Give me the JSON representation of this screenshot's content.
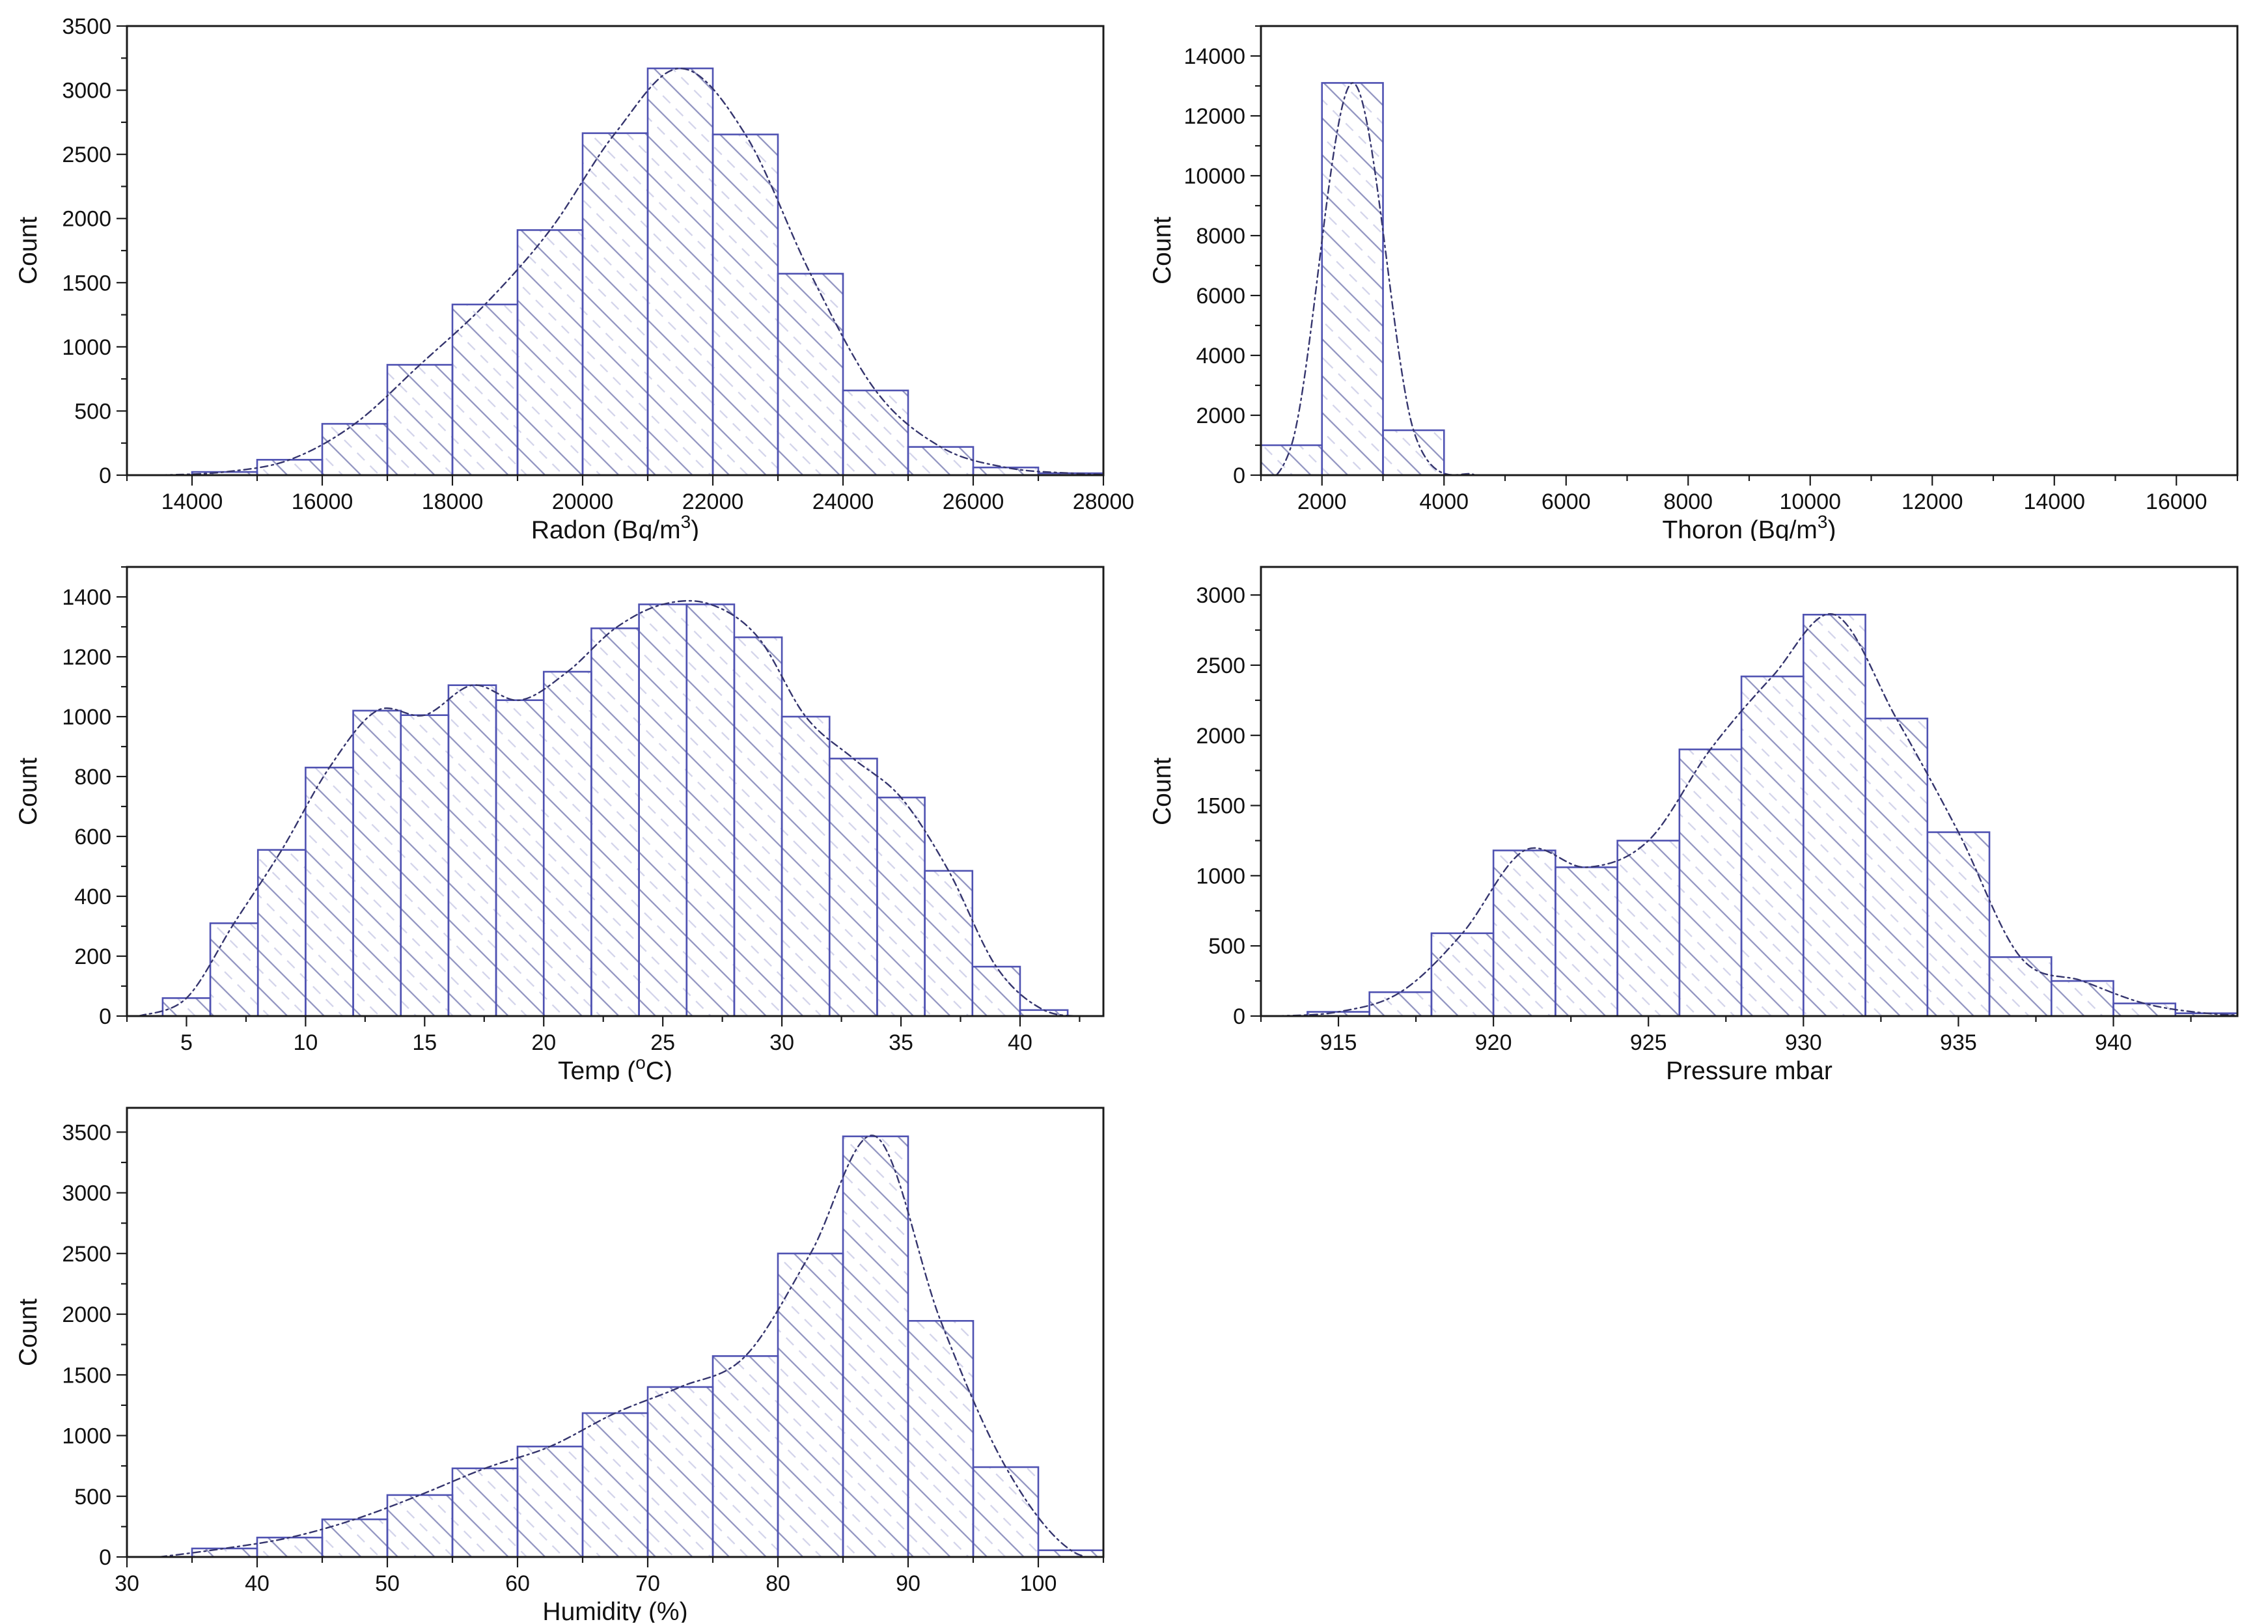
{
  "style": {
    "background": "#ffffff",
    "axis_color": "#1a1a1a",
    "text_color": "#111111",
    "bar_stroke": "#4f52b2",
    "hatch_dark": "#9093c0",
    "hatch_light": "#d2d3ea",
    "curve_color": "#35356e"
  },
  "chart_data": [
    {
      "type": "bar",
      "subtype": "histogram",
      "xlabel": "Radon (Bq/m3)",
      "xlabel_segments": [
        {
          "text": "Radon (Bq/m"
        },
        {
          "text": "3",
          "sup": true
        },
        {
          "text": ")"
        }
      ],
      "ylabel": "Count",
      "xlim": [
        13000,
        28000
      ],
      "ylim": [
        0,
        3500
      ],
      "x_major_ticks": [
        14000,
        16000,
        18000,
        20000,
        22000,
        24000,
        26000,
        28000
      ],
      "x_minor_step": 1000,
      "y_major_ticks": [
        0,
        500,
        1000,
        1500,
        2000,
        2500,
        3000,
        3500
      ],
      "y_minor_step": 250,
      "bin_start": 14000,
      "bin_width": 1000,
      "values": [
        25,
        120,
        400,
        860,
        1330,
        1910,
        2665,
        3170,
        2655,
        1570,
        660,
        220,
        60,
        15
      ],
      "fit_curve": true,
      "grid": "off",
      "legend": "none"
    },
    {
      "type": "bar",
      "subtype": "histogram",
      "xlabel": "Thoron (Bq/m3)",
      "xlabel_segments": [
        {
          "text": "Thoron (Bq/m"
        },
        {
          "text": "3",
          "sup": true
        },
        {
          "text": ")"
        }
      ],
      "ylabel": "Count",
      "xlim": [
        1000,
        17000
      ],
      "ylim": [
        0,
        15000
      ],
      "x_major_ticks": [
        2000,
        4000,
        6000,
        8000,
        10000,
        12000,
        14000,
        16000
      ],
      "x_minor_step": 1000,
      "y_major_ticks": [
        0,
        2000,
        4000,
        6000,
        8000,
        10000,
        12000,
        14000
      ],
      "y_minor_step": 1000,
      "bin_start": 1000,
      "bin_width": 1000,
      "values": [
        1000,
        13100,
        1500
      ],
      "fit_curve": true,
      "grid": "off",
      "legend": "none"
    },
    {
      "type": "bar",
      "subtype": "histogram",
      "xlabel": "Temp (oC)",
      "xlabel_segments": [
        {
          "text": "Temp ("
        },
        {
          "text": "o",
          "sup": true
        },
        {
          "text": "C)"
        }
      ],
      "ylabel": "Count",
      "xlim": [
        2.5,
        43.5
      ],
      "ylim": [
        0,
        1500
      ],
      "x_major_ticks": [
        5,
        10,
        15,
        20,
        25,
        30,
        35,
        40
      ],
      "x_minor_step": 2.5,
      "y_major_ticks": [
        0,
        200,
        400,
        600,
        800,
        1000,
        1200,
        1400
      ],
      "y_minor_step": 100,
      "bin_start": 4,
      "bin_width": 2,
      "values": [
        60,
        310,
        555,
        830,
        1020,
        1005,
        1105,
        1055,
        1150,
        1295,
        1375,
        1375,
        1265,
        1000,
        860,
        730,
        485,
        165,
        20
      ],
      "fit_curve": true,
      "grid": "off",
      "legend": "none"
    },
    {
      "type": "bar",
      "subtype": "histogram",
      "xlabel": "Pressure mbar",
      "xlabel_segments": [
        {
          "text": "Pressure mbar"
        }
      ],
      "ylabel": "Count",
      "xlim": [
        912.5,
        944
      ],
      "ylim": [
        0,
        3200
      ],
      "x_major_ticks": [
        915,
        920,
        925,
        930,
        935,
        940
      ],
      "x_minor_step": 2.5,
      "y_major_ticks": [
        0,
        500,
        1000,
        1500,
        2000,
        2500,
        3000
      ],
      "y_minor_step": 250,
      "bin_start": 914,
      "bin_width": 2,
      "values": [
        30,
        170,
        590,
        1180,
        1060,
        1250,
        1900,
        2420,
        2860,
        2120,
        1310,
        420,
        250,
        90,
        20
      ],
      "fit_curve": true,
      "grid": "off",
      "legend": "none"
    },
    {
      "type": "bar",
      "subtype": "histogram",
      "xlabel": "Humidity (%)",
      "xlabel_segments": [
        {
          "text": "Humidity (%)"
        }
      ],
      "ylabel": "Count",
      "xlim": [
        30,
        105
      ],
      "ylim": [
        0,
        3700
      ],
      "x_major_ticks": [
        30,
        40,
        50,
        60,
        70,
        80,
        90,
        100
      ],
      "x_minor_step": 5,
      "y_major_ticks": [
        0,
        500,
        1000,
        1500,
        2000,
        2500,
        3000,
        3500
      ],
      "y_minor_step": 250,
      "bin_start": 35,
      "bin_width": 5,
      "values": [
        70,
        160,
        310,
        510,
        730,
        910,
        1185,
        1400,
        1655,
        2500,
        3465,
        1945,
        740,
        55
      ],
      "fit_curve": true,
      "grid": "off",
      "legend": "none"
    }
  ]
}
